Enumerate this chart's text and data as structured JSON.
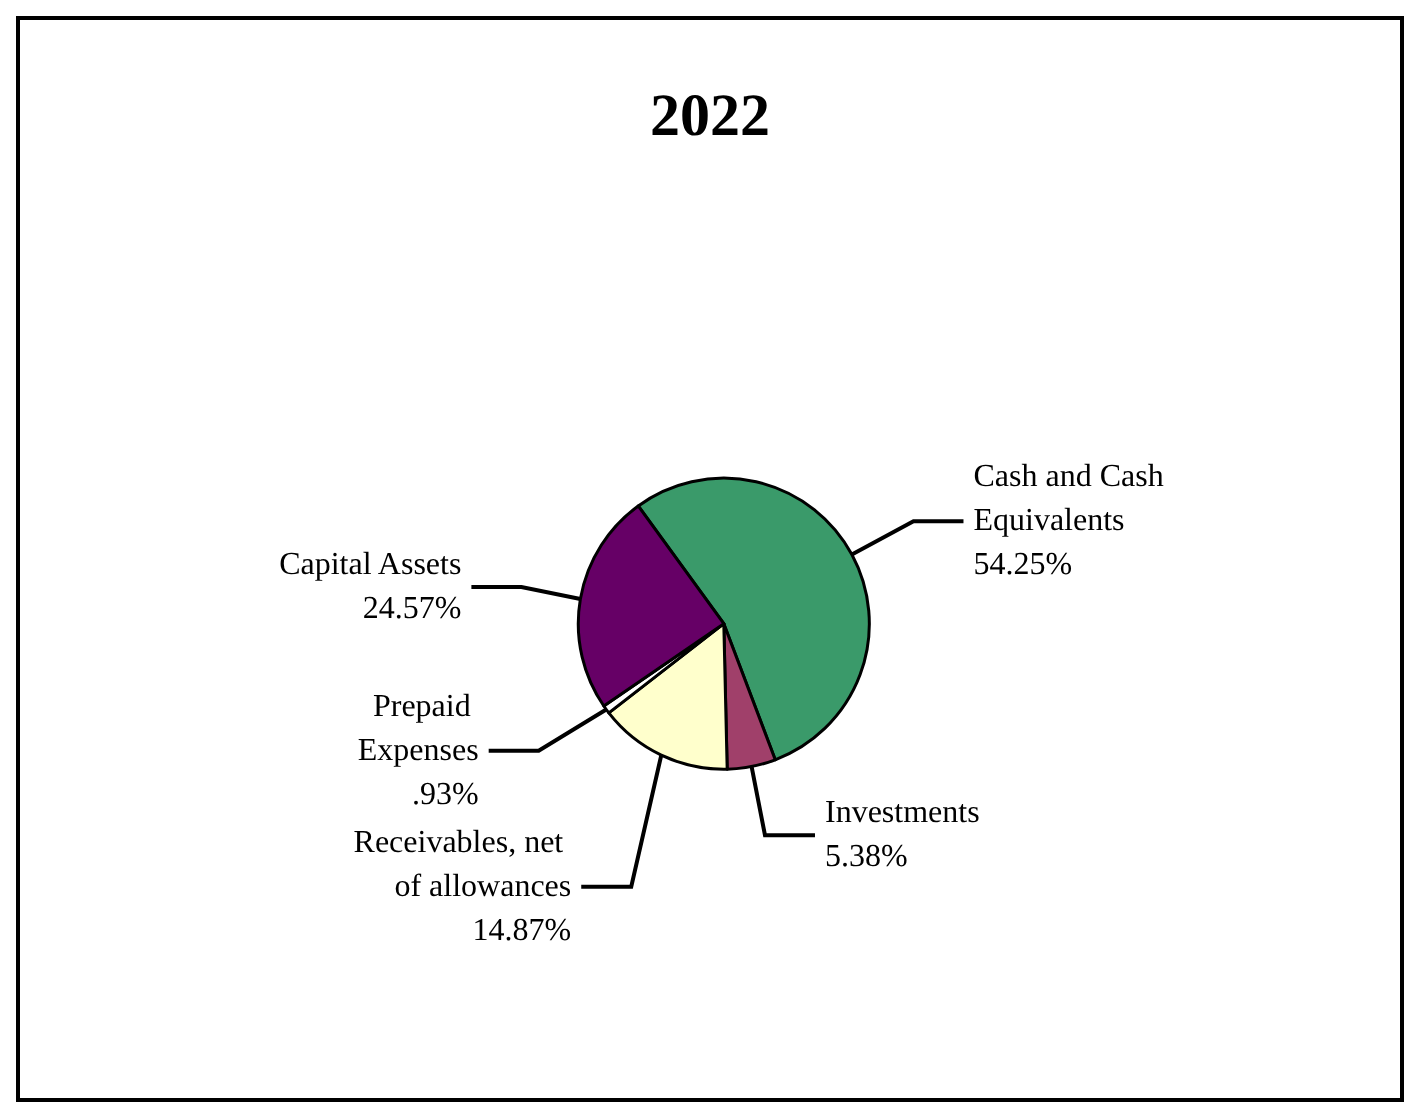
{
  "chart_data": {
    "type": "pie",
    "title": "2022",
    "categories": [
      "Cash and Cash Equivalents",
      "Investments",
      "Receivables, net of allowances",
      "Prepaid Expenses",
      "Capital Assets"
    ],
    "values": [
      54.25,
      5.38,
      14.87,
      0.93,
      24.57
    ],
    "value_labels": [
      "54.25%",
      "5.38%",
      "14.87%",
      ".93%",
      "24.57%"
    ],
    "colors": [
      "#3a9a6a",
      "#a0406a",
      "#ffffcc",
      "#ffffff",
      "#660066"
    ],
    "legend": false
  }
}
